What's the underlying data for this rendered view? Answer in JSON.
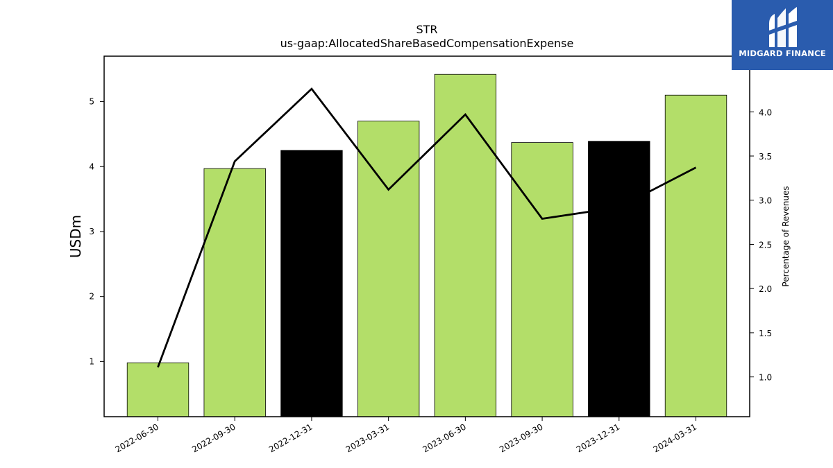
{
  "chart_data": {
    "type": "bar",
    "title": "STR",
    "subtitle": "us-gaap:AllocatedShareBasedCompensationExpense",
    "ylabel": "USDm",
    "y2label": "Percentage of Revenues",
    "categories": [
      "2022-06-30",
      "2022-09-30",
      "2022-12-31",
      "2023-03-31",
      "2023-06-30",
      "2023-09-30",
      "2023-12-31",
      "2024-03-31"
    ],
    "values": [
      0.98,
      3.97,
      4.25,
      4.7,
      5.42,
      4.37,
      4.39,
      5.1
    ],
    "bar_colors": [
      "#b3de69",
      "#b3de69",
      "#000000",
      "#b3de69",
      "#b3de69",
      "#b3de69",
      "#000000",
      "#b3de69"
    ],
    "line": {
      "name": "",
      "values": [
        1.11,
        3.44,
        4.26,
        3.12,
        3.97,
        2.79,
        2.92,
        3.37
      ],
      "color": "#000000"
    },
    "ylim": [
      0.15,
      5.7
    ],
    "y2lim": [
      0.55,
      4.63
    ],
    "yticks": [
      1,
      2,
      3,
      4,
      5
    ],
    "y2ticks": [
      1.0,
      1.5,
      2.0,
      2.5,
      3.0,
      3.5,
      4.0
    ],
    "grid": false
  },
  "logo": {
    "text": "MIDGARD FINANCE",
    "icon": "midgard-logo-icon",
    "background": "#2a5cae"
  }
}
